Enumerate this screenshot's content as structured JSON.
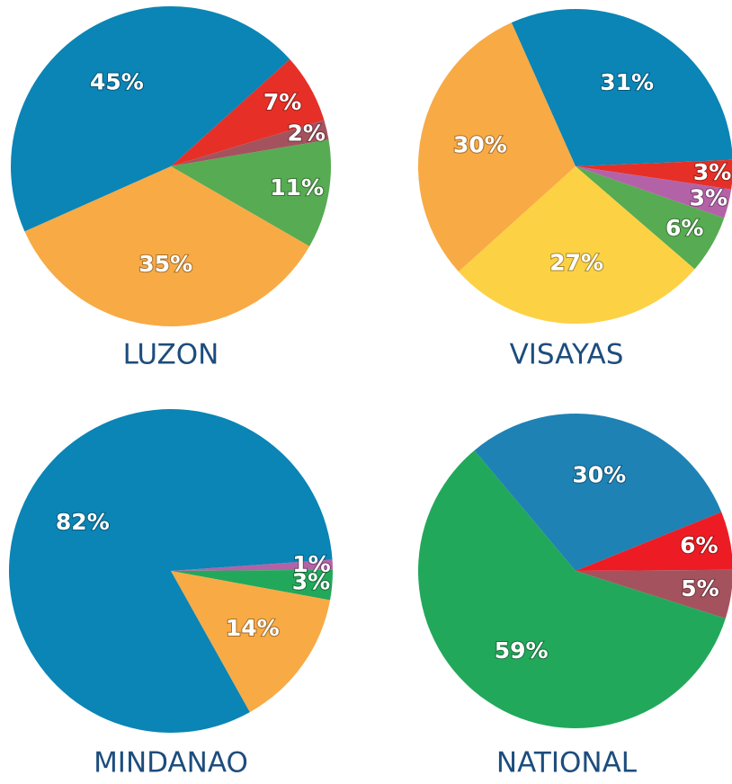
{
  "chart_data": [
    {
      "type": "pie",
      "title": "LUZON",
      "start_angle": -42,
      "values": [
        7,
        2,
        11,
        35,
        45
      ],
      "value_labels": [
        "7%",
        "2%",
        "11%",
        "35%",
        "45%"
      ],
      "colors": [
        "#e63027",
        "#a4535e",
        "#57ab52",
        "#f8aa45",
        "#0a85b5"
      ]
    },
    {
      "type": "pie",
      "title": "VISAYAS",
      "start_angle": -114,
      "values": [
        31,
        3,
        3,
        6,
        27,
        30
      ],
      "value_labels": [
        "31%",
        "3%",
        "3%",
        "6%",
        "27%",
        "30%"
      ],
      "colors": [
        "#0a85b5",
        "#e63027",
        "#b462a8",
        "#57ab52",
        "#fdd144",
        "#f8aa45"
      ]
    },
    {
      "type": "pie",
      "title": "MINDANAO",
      "start_angle": -4,
      "values": [
        1,
        3,
        14,
        82
      ],
      "value_labels": [
        "1%",
        "3%",
        "14%",
        "82%"
      ],
      "colors": [
        "#b462a8",
        "#22a85a",
        "#f8aa45",
        "#0a85b5"
      ]
    },
    {
      "type": "pie",
      "title": "NATIONAL",
      "start_angle": -130,
      "values": [
        30,
        6,
        5,
        59
      ],
      "value_labels": [
        "30%",
        "6%",
        "5%",
        "59%"
      ],
      "colors": [
        "#1e82b5",
        "#ed1c24",
        "#a4535e",
        "#22a85a"
      ]
    }
  ]
}
